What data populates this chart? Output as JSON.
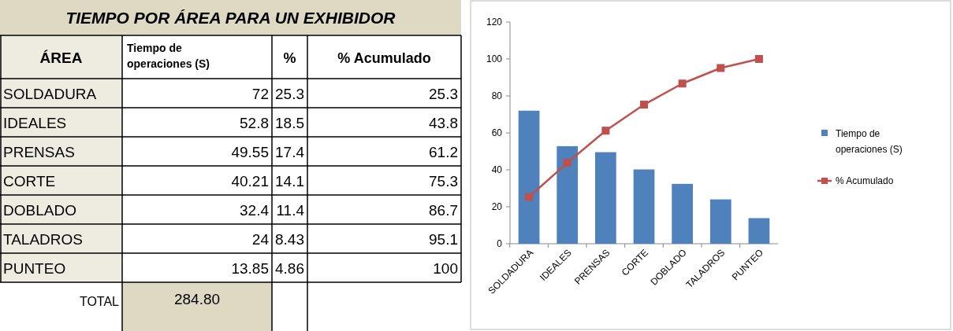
{
  "chart_data": [
    {
      "type": "other",
      "title": "TIEMPO POR ÁREA PARA UN EXHIBIDOR",
      "xlabel": "ÁREA",
      "categories": [
        "SOLDADURA",
        "IDEALES",
        "PRENSAS",
        "CORTE",
        "DOBLADO",
        "TALADROS",
        "PUNTEO"
      ],
      "series": [
        {
          "name": "Tiempo de operaciones (S)",
          "values": [
            72,
            52.8,
            49.55,
            40.21,
            32.4,
            24,
            13.85
          ]
        },
        {
          "name": "%",
          "values": [
            25.3,
            18.5,
            17.4,
            14.1,
            11.4,
            8.43,
            4.86
          ]
        },
        {
          "name": "% Acumulado",
          "values": [
            25.3,
            43.8,
            61.2,
            75.3,
            86.7,
            95.1,
            100
          ]
        }
      ],
      "annotations": [
        "TOTAL",
        "284.80"
      ],
      "data_labels": true
    },
    {
      "type": "bar",
      "categories": [
        "SOLDADURA",
        "IDEALES",
        "PRENSAS",
        "CORTE",
        "DOBLADO",
        "TALADROS",
        "PUNTEO"
      ],
      "series": [
        {
          "name": "Tiempo de operaciones (S)",
          "color": "#4f81bd",
          "values": [
            72,
            52.8,
            49.55,
            40.21,
            32.4,
            24,
            13.85
          ]
        },
        {
          "name": "% Acumulado",
          "type": "line",
          "color": "#c0504d",
          "marker": "square",
          "values": [
            25.3,
            43.8,
            61.2,
            75.3,
            86.7,
            95.1,
            100
          ]
        }
      ],
      "ylim": [
        0,
        120
      ],
      "yticks": [
        0,
        20,
        40,
        60,
        80,
        100,
        120
      ],
      "legend": "right"
    }
  ]
}
